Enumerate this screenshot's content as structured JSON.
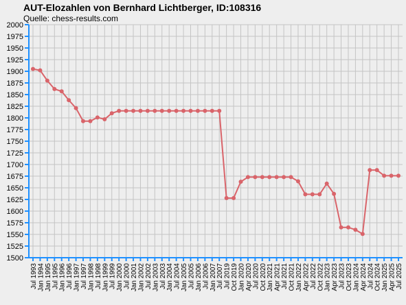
{
  "chart_data": {
    "type": "line",
    "title": "AUT-Elozahlen von Bernhard Lichtberger, ID:108316",
    "subtitle": "Quelle: chess-results.com",
    "categories": [
      "Jul 1993",
      "Jan 1994",
      "Jan 1995",
      "Jul 1995",
      "Jan 1996",
      "Jul 1996",
      "Jan 1997",
      "Jul 1997",
      "Jan 1998",
      "Jul 1998",
      "Jan 1999",
      "Jul 1999",
      "Jan 2000",
      "Jul 2000",
      "Jan 2001",
      "Jan 2002",
      "Jul 2002",
      "Jan 2003",
      "Jul 2003",
      "Jan 2004",
      "Jul 2004",
      "Jan 2005",
      "Jul 2005",
      "Jan 2006",
      "Jul 2006",
      "Jan 2007",
      "Jul 2007",
      "Jul 2019",
      "Oct 2019",
      "Jan 2020",
      "Apr 2020",
      "Jul 2020",
      "Oct 2020",
      "Jan 2021",
      "Apr 2021",
      "Jul 2021",
      "Oct 2021",
      "Jan 2022",
      "Apr 2022",
      "Jul 2022",
      "Oct 2022",
      "Jan 2023",
      "Apr 2023",
      "Jul 2023",
      "Oct 2023",
      "Jan 2024",
      "Apr 2024",
      "Jul 2024",
      "Oct 2024",
      "Jan 2025",
      "Apr 2025",
      "Jul 2025"
    ],
    "values": [
      1905,
      1902,
      1880,
      1862,
      1857,
      1838,
      1821,
      1793,
      1793,
      1801,
      1797,
      1810,
      1815,
      1815,
      1815,
      1815,
      1815,
      1815,
      1815,
      1815,
      1815,
      1815,
      1815,
      1815,
      1815,
      1815,
      1815,
      1628,
      1628,
      1663,
      1673,
      1673,
      1673,
      1673,
      1673,
      1673,
      1673,
      1664,
      1636,
      1636,
      1636,
      1659,
      1637,
      1565,
      1565,
      1560,
      1551,
      1688,
      1688,
      1676,
      1676,
      1676
    ],
    "color": "#d9646a",
    "ylim": [
      1500,
      2000
    ],
    "yticks": [
      1500,
      1525,
      1550,
      1575,
      1600,
      1625,
      1650,
      1675,
      1700,
      1725,
      1750,
      1775,
      1800,
      1825,
      1850,
      1875,
      1900,
      1925,
      1950,
      1975,
      2000
    ],
    "grid": true
  }
}
